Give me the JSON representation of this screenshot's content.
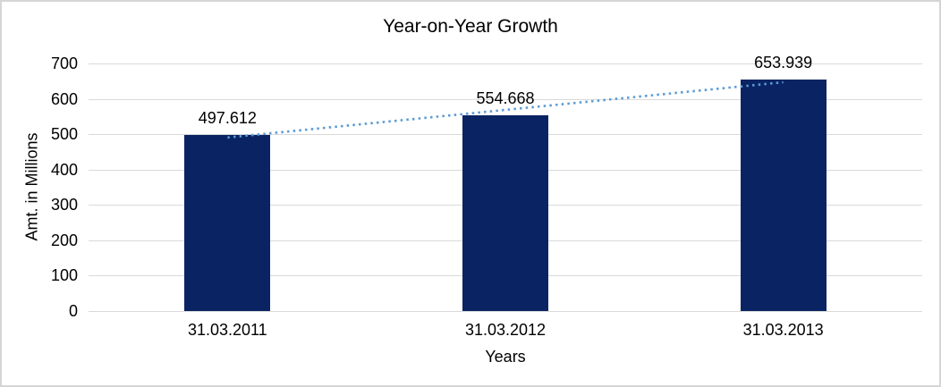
{
  "chart_data": {
    "type": "bar",
    "title": "Year-on-Year Growth",
    "categories": [
      "31.03.2011",
      "31.03.2012",
      "31.03.2013"
    ],
    "values": [
      497.612,
      554.668,
      653.939
    ],
    "data_labels": [
      "497.612",
      "554.668",
      "653.939"
    ],
    "xlabel": "Years",
    "ylabel": "Amt. in Millions",
    "ylim": [
      0,
      700
    ],
    "ytick_step": 100,
    "ytick_labels": [
      "0",
      "100",
      "200",
      "300",
      "400",
      "500",
      "600",
      "700"
    ],
    "grid": true,
    "legend": false,
    "trendline": {
      "type": "linear",
      "style": "dotted",
      "color": "#5b9bd5"
    },
    "colors": {
      "bar": "#0a2463",
      "gridline": "#d9d9d9",
      "frame_border": "#d5d5d5",
      "text": "#000000"
    }
  }
}
